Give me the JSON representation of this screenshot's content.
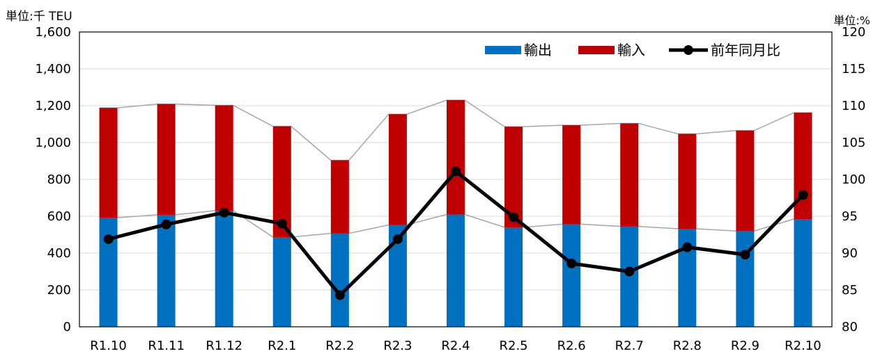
{
  "chart_data": {
    "type": "bar",
    "stacked": true,
    "left_axis_unit": "単位:千 TEU",
    "right_axis_unit": "単位:%",
    "categories": [
      "R1.10",
      "R1.11",
      "R1.12",
      "R2.1",
      "R2.2",
      "R2.3",
      "R2.4",
      "R2.5",
      "R2.6",
      "R2.7",
      "R2.8",
      "R2.9",
      "R2.10"
    ],
    "series": [
      {
        "name": "輸出",
        "type": "bar",
        "axis": "left",
        "color": "#0070C0",
        "values": [
          592,
          608,
          630,
          487,
          507,
          553,
          610,
          540,
          557,
          545,
          532,
          520,
          585
        ]
      },
      {
        "name": "輸入",
        "type": "bar",
        "axis": "left",
        "color": "#C00000",
        "values": [
          596,
          601,
          572,
          601,
          397,
          601,
          620,
          546,
          537,
          559,
          515,
          545,
          577
        ]
      },
      {
        "name": "前年同月比",
        "type": "line",
        "axis": "right",
        "color": "#000000",
        "values": [
          91.9,
          93.9,
          95.5,
          94.0,
          84.3,
          91.9,
          101.1,
          94.9,
          88.6,
          87.5,
          90.8,
          89.8,
          97.9
        ]
      }
    ],
    "left_ylim": [
      0,
      1600
    ],
    "left_yticks": [
      "0",
      "200",
      "400",
      "600",
      "800",
      "1,000",
      "1,200",
      "1,400",
      "1,600"
    ],
    "right_ylim": [
      80,
      120
    ],
    "right_yticks": [
      "80",
      "85",
      "90",
      "95",
      "100",
      "105",
      "110",
      "115",
      "120"
    ],
    "grid": true,
    "legend_position": "top-right"
  }
}
